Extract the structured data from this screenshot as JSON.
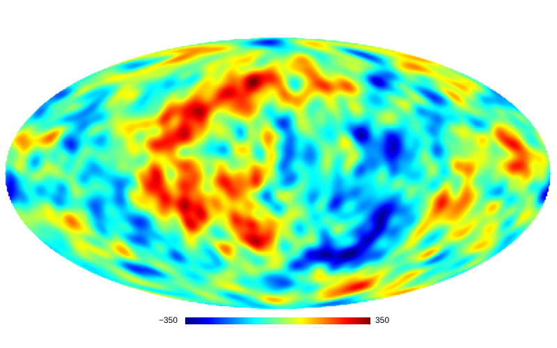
{
  "map": {
    "projection": "mollweide",
    "colormap": "jet",
    "colors": [
      "#00007f",
      "#0000ff",
      "#007fff",
      "#00ffff",
      "#7fff7f",
      "#ffff00",
      "#ff7f00",
      "#ff0000",
      "#7f0000"
    ]
  },
  "colorbar": {
    "min_label": "−350",
    "max_label": "350",
    "min_value": -350,
    "max_value": 350
  }
}
